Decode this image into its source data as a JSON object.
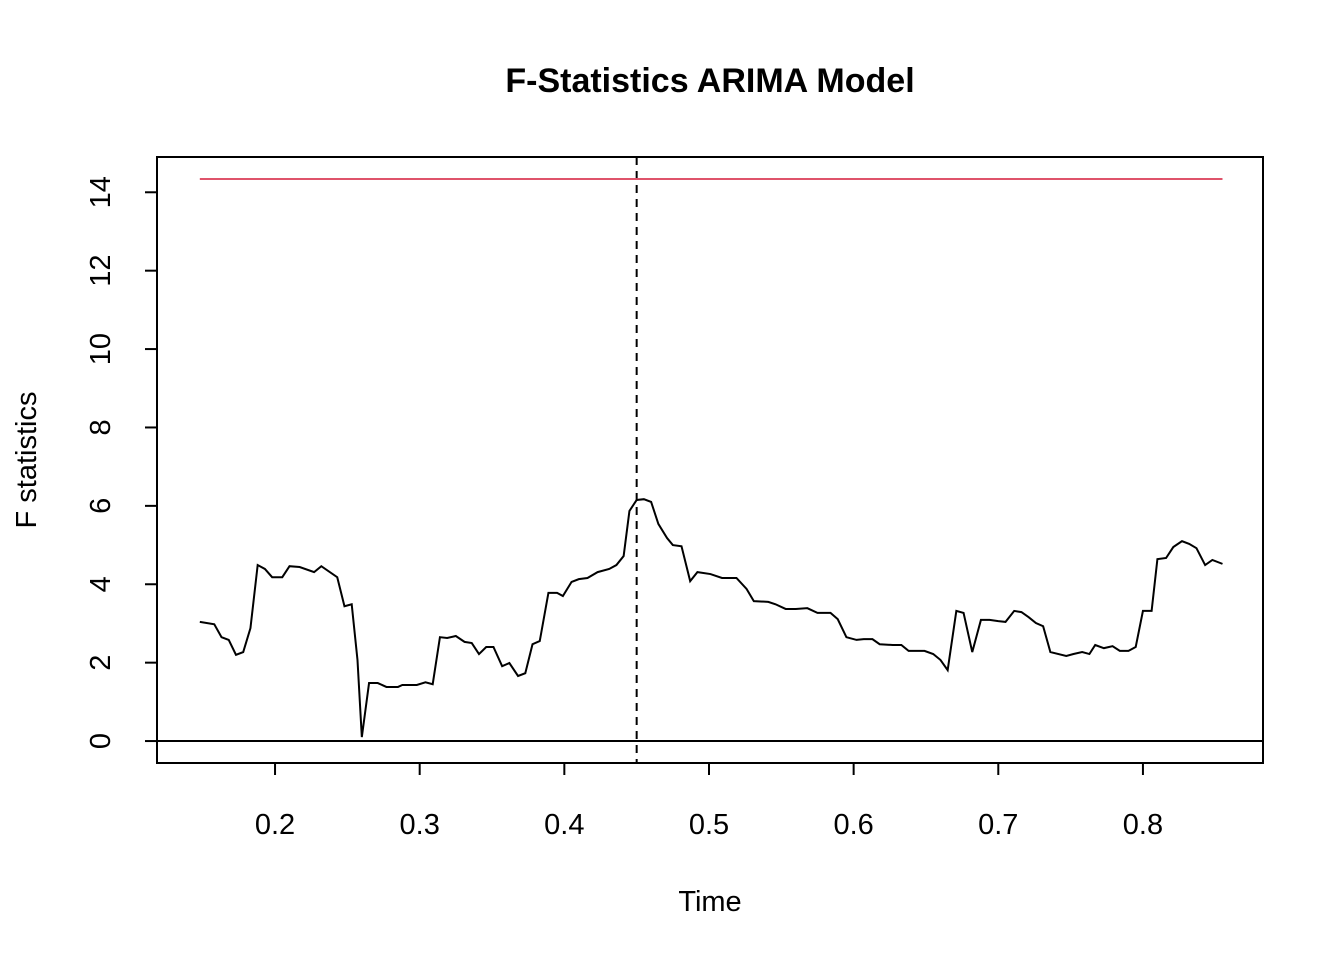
{
  "chart_data": {
    "type": "line",
    "title": "F-Statistics ARIMA Model",
    "x_label": "Time",
    "y_label": "F statistics",
    "x": [
      0.148,
      0.158,
      0.163,
      0.168,
      0.173,
      0.178,
      0.183,
      0.188,
      0.193,
      0.198,
      0.205,
      0.21,
      0.217,
      0.227,
      0.232,
      0.243,
      0.248,
      0.253,
      0.257,
      0.26,
      0.265,
      0.271,
      0.277,
      0.285,
      0.288,
      0.298,
      0.304,
      0.309,
      0.314,
      0.319,
      0.325,
      0.331,
      0.336,
      0.341,
      0.346,
      0.351,
      0.357,
      0.362,
      0.368,
      0.373,
      0.378,
      0.383,
      0.389,
      0.395,
      0.399,
      0.405,
      0.41,
      0.416,
      0.423,
      0.431,
      0.436,
      0.441,
      0.445,
      0.45,
      0.455,
      0.46,
      0.465,
      0.471,
      0.475,
      0.481,
      0.487,
      0.492,
      0.501,
      0.509,
      0.519,
      0.526,
      0.531,
      0.541,
      0.546,
      0.553,
      0.56,
      0.568,
      0.575,
      0.584,
      0.589,
      0.595,
      0.602,
      0.607,
      0.613,
      0.618,
      0.627,
      0.633,
      0.638,
      0.649,
      0.655,
      0.66,
      0.665,
      0.671,
      0.676,
      0.682,
      0.688,
      0.694,
      0.7,
      0.705,
      0.711,
      0.716,
      0.721,
      0.726,
      0.731,
      0.736,
      0.747,
      0.752,
      0.758,
      0.763,
      0.767,
      0.773,
      0.779,
      0.784,
      0.79,
      0.795,
      0.8,
      0.806,
      0.81,
      0.816,
      0.821,
      0.827,
      0.832,
      0.837,
      0.843,
      0.848,
      0.855
    ],
    "values": [
      3.04,
      2.98,
      2.65,
      2.58,
      2.2,
      2.27,
      2.88,
      4.49,
      4.39,
      4.18,
      4.18,
      4.46,
      4.44,
      4.31,
      4.46,
      4.18,
      3.44,
      3.49,
      2.07,
      0.1,
      1.48,
      1.48,
      1.38,
      1.38,
      1.43,
      1.43,
      1.5,
      1.45,
      2.65,
      2.63,
      2.68,
      2.53,
      2.5,
      2.22,
      2.4,
      2.4,
      1.91,
      1.99,
      1.66,
      1.73,
      2.47,
      2.55,
      3.78,
      3.78,
      3.7,
      4.06,
      4.13,
      4.16,
      4.31,
      4.39,
      4.49,
      4.72,
      5.87,
      6.15,
      6.17,
      6.1,
      5.54,
      5.18,
      5.0,
      4.97,
      4.08,
      4.31,
      4.26,
      4.16,
      4.16,
      3.88,
      3.57,
      3.55,
      3.49,
      3.37,
      3.37,
      3.39,
      3.27,
      3.27,
      3.11,
      2.65,
      2.58,
      2.6,
      2.6,
      2.47,
      2.45,
      2.45,
      2.3,
      2.3,
      2.22,
      2.07,
      1.81,
      3.32,
      3.27,
      2.27,
      3.09,
      3.09,
      3.06,
      3.04,
      3.32,
      3.29,
      3.16,
      3.01,
      2.93,
      2.27,
      2.17,
      2.22,
      2.27,
      2.22,
      2.45,
      2.37,
      2.42,
      2.3,
      2.3,
      2.4,
      3.32,
      3.32,
      4.64,
      4.67,
      4.95,
      5.1,
      5.03,
      4.92,
      4.49,
      4.62,
      4.52
    ],
    "color": "#000000",
    "critical_value": {
      "value": 14.34,
      "color": "#df536b"
    },
    "breakpoint": {
      "value": 0.45,
      "color": "#000000",
      "dashed": true
    },
    "hline": {
      "value": 0,
      "color": "#000000"
    },
    "xlim": [
      0.1184,
      0.883
    ],
    "ylim": [
      -0.56,
      14.9
    ],
    "xticks": [
      0.2,
      0.3,
      0.4,
      0.5,
      0.6,
      0.7,
      0.8
    ],
    "yticks": [
      0,
      2,
      4,
      6,
      8,
      10,
      12,
      14
    ],
    "grid": false
  }
}
